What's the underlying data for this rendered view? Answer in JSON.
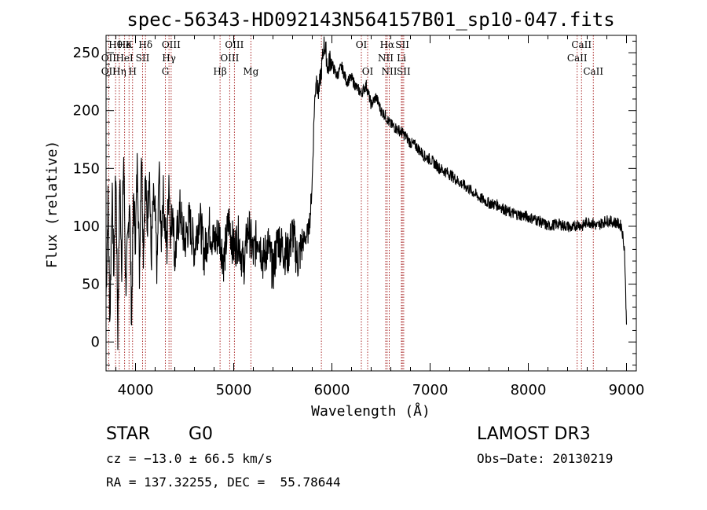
{
  "chart_data": {
    "type": "line",
    "title": "spec-56343-HD092143N564157B01_sp10-047.fits",
    "xlabel": "Wavelength (Å)",
    "ylabel": "Flux (relative)",
    "xlim": [
      3700,
      9100
    ],
    "ylim": [
      -25,
      265
    ],
    "xticks": [
      4000,
      5000,
      6000,
      7000,
      8000,
      9000
    ],
    "yticks": [
      0,
      50,
      100,
      150,
      200,
      250
    ],
    "series": [
      {
        "name": "flux",
        "x": [
          3700,
          3720,
          3740,
          3760,
          3780,
          3800,
          3820,
          3840,
          3860,
          3880,
          3900,
          3920,
          3940,
          3960,
          3980,
          4000,
          4020,
          4040,
          4060,
          4080,
          4100,
          4120,
          4140,
          4160,
          4180,
          4200,
          4220,
          4240,
          4260,
          4280,
          4300,
          4320,
          4340,
          4360,
          4380,
          4400,
          4450,
          4500,
          4550,
          4600,
          4650,
          4700,
          4750,
          4800,
          4850,
          4900,
          4950,
          5000,
          5050,
          5100,
          5150,
          5200,
          5250,
          5300,
          5350,
          5400,
          5450,
          5500,
          5550,
          5600,
          5650,
          5700,
          5730,
          5760,
          5780,
          5800,
          5820,
          5840,
          5860,
          5880,
          5900,
          5920,
          5940,
          5960,
          5980,
          6000,
          6050,
          6100,
          6150,
          6200,
          6250,
          6300,
          6350,
          6400,
          6450,
          6500,
          6550,
          6580,
          6600,
          6650,
          6700,
          6750,
          6800,
          6850,
          6900,
          6950,
          7000,
          7100,
          7200,
          7300,
          7400,
          7500,
          7600,
          7700,
          7800,
          7900,
          8000,
          8100,
          8200,
          8300,
          8400,
          8450,
          8500,
          8550,
          8600,
          8650,
          8700,
          8750,
          8800,
          8850,
          8900,
          8950,
          8980,
          9000
        ],
        "values": [
          40,
          120,
          20,
          130,
          60,
          150,
          10,
          140,
          70,
          160,
          50,
          80,
          130,
          20,
          125,
          90,
          160,
          60,
          170,
          80,
          140,
          100,
          155,
          70,
          120,
          110,
          60,
          150,
          85,
          130,
          100,
          80,
          145,
          90,
          120,
          70,
          115,
          85,
          105,
          80,
          110,
          75,
          100,
          85,
          95,
          70,
          105,
          80,
          90,
          65,
          100,
          75,
          95,
          70,
          85,
          60,
          90,
          80,
          75,
          95,
          70,
          85,
          90,
          95,
          110,
          140,
          200,
          230,
          215,
          225,
          240,
          258,
          250,
          235,
          245,
          240,
          230,
          238,
          225,
          228,
          220,
          215,
          222,
          205,
          212,
          200,
          195,
          190,
          188,
          185,
          182,
          178,
          172,
          170,
          165,
          160,
          158,
          150,
          145,
          138,
          132,
          125,
          120,
          118,
          112,
          110,
          108,
          105,
          100,
          102,
          100,
          98,
          102,
          100,
          104,
          103,
          100,
          103,
          105,
          104,
          103,
          100,
          80,
          15
        ]
      }
    ],
    "spectral_lines": [
      {
        "label": "Hθ",
        "x": 3797,
        "row": 1
      },
      {
        "label": "OII",
        "x": 3727,
        "row": 2
      },
      {
        "label": "OII",
        "x": 3727,
        "row": 3
      },
      {
        "label": "He",
        "x": 3889,
        "row": 1
      },
      {
        "label": "Hη",
        "x": 3835,
        "row": 3
      },
      {
        "label": "K",
        "x": 3934,
        "row": 1
      },
      {
        "label": "HeI",
        "x": 3889,
        "row": 2
      },
      {
        "label": "H",
        "x": 3970,
        "row": 3
      },
      {
        "label": "SII",
        "x": 4072,
        "row": 2
      },
      {
        "label": "Hδ",
        "x": 4102,
        "row": 1
      },
      {
        "label": "OIII",
        "x": 4363,
        "row": 1
      },
      {
        "label": "Hγ",
        "x": 4341,
        "row": 2
      },
      {
        "label": "G",
        "x": 4304,
        "row": 3
      },
      {
        "label": "Hβ",
        "x": 4861,
        "row": 3
      },
      {
        "label": "OIII",
        "x": 5007,
        "row": 1
      },
      {
        "label": "OIII",
        "x": 4959,
        "row": 2
      },
      {
        "label": "Mg",
        "x": 5175,
        "row": 3
      },
      {
        "label": "OI",
        "x": 6300,
        "row": 1
      },
      {
        "label": "OI",
        "x": 6364,
        "row": 3
      },
      {
        "label": "Hα",
        "x": 6563,
        "row": 1
      },
      {
        "label": "NII",
        "x": 6548,
        "row": 2
      },
      {
        "label": "NII",
        "x": 6584,
        "row": 3
      },
      {
        "label": "SII",
        "x": 6717,
        "row": 1
      },
      {
        "label": "Li",
        "x": 6708,
        "row": 2
      },
      {
        "label": "SII",
        "x": 6731,
        "row": 3
      },
      {
        "label": "CaII",
        "x": 8542,
        "row": 1
      },
      {
        "label": "CaII",
        "x": 8498,
        "row": 2
      },
      {
        "label": "CaII",
        "x": 8662,
        "row": 3
      }
    ],
    "marker_lines": [
      3727,
      3797,
      3835,
      3889,
      3934,
      3970,
      4072,
      4102,
      4304,
      4341,
      4363,
      4861,
      4959,
      5007,
      5175,
      5893,
      6300,
      6364,
      6548,
      6563,
      6584,
      6708,
      6717,
      6731,
      8498,
      8542,
      8662
    ]
  },
  "info": {
    "object_type": "STAR",
    "subclass": "G0",
    "survey": "LAMOST DR3",
    "redshift": "cz = −13.0 ± 66.5 km/s",
    "obs_date": "Obs−Date: 20130219",
    "coords": "RA = 137.32255, DEC =  55.78644"
  },
  "colors": {
    "spectrum": "#000000",
    "marker_line": "#a01010",
    "frame": "#000000"
  }
}
